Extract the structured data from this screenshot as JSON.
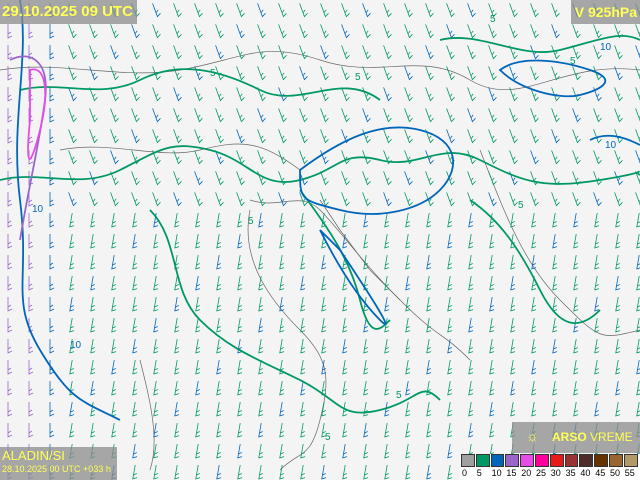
{
  "header": {
    "valid_time": "29.10.2025 09 UTC",
    "level": "V 925hPa"
  },
  "model": {
    "name": "ALADIN/SI",
    "run": "28.10.2025 00 UTC +033 h"
  },
  "brand": {
    "icon": "arso-logo-icon",
    "strong": "ARSO",
    "light": " VREME"
  },
  "legend": {
    "labels": [
      "0",
      "5",
      "10",
      "15",
      "20",
      "25",
      "30",
      "35",
      "40",
      "45",
      "50",
      "55"
    ],
    "colors": [
      "#a0a0a0",
      "#009966",
      "#0066bb",
      "#9966cc",
      "#e64ce6",
      "#ff0099",
      "#e61a1a",
      "#993333",
      "#4d2b2b",
      "#663300",
      "#996633",
      "#b39966"
    ]
  },
  "contour_labels": [
    "5",
    "5",
    "5",
    "5",
    "5",
    "5",
    "10",
    "10",
    "10",
    "10",
    "5",
    "5"
  ],
  "colors": {
    "background": "#f2f2f2",
    "borders": "#555555",
    "label_text": "#ffff55"
  }
}
